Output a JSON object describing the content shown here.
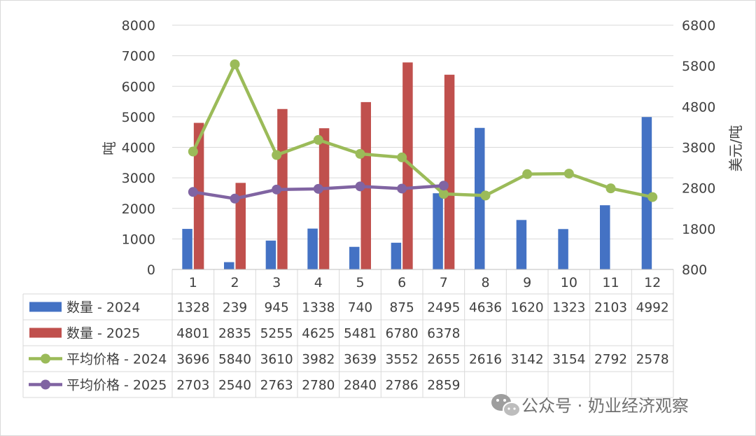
{
  "chart_data": {
    "type": "bar",
    "categories": [
      "1",
      "2",
      "3",
      "4",
      "5",
      "6",
      "7",
      "8",
      "9",
      "10",
      "11",
      "12"
    ],
    "series": [
      {
        "name": "数量 - 2024",
        "kind": "bar",
        "axis": "left",
        "color": "#4472C4",
        "values": [
          1328,
          239,
          945,
          1338,
          740,
          875,
          2495,
          4636,
          1620,
          1323,
          2103,
          4992
        ]
      },
      {
        "name": "数量 - 2025",
        "kind": "bar",
        "axis": "left",
        "color": "#C0504D",
        "values": [
          4801,
          2835,
          5255,
          4625,
          5481,
          6780,
          6378,
          null,
          null,
          null,
          null,
          null
        ]
      },
      {
        "name": "平均价格 - 2024",
        "kind": "line",
        "axis": "right",
        "color": "#9BBB59",
        "values": [
          3696,
          5840,
          3610,
          3982,
          3639,
          3552,
          2655,
          2616,
          3142,
          3154,
          2792,
          2578
        ]
      },
      {
        "name": "平均价格 - 2025",
        "kind": "line",
        "axis": "right",
        "color": "#8064A2",
        "values": [
          2703,
          2540,
          2763,
          2780,
          2840,
          2786,
          2859,
          null,
          null,
          null,
          null,
          null
        ]
      }
    ],
    "ylabel": "吨",
    "y2label": "美元/吨",
    "ylim": [
      0,
      8000
    ],
    "y2lim": [
      800,
      6800
    ],
    "yticks": [
      0,
      1000,
      2000,
      3000,
      4000,
      5000,
      6000,
      7000,
      8000
    ],
    "y2ticks": [
      800,
      1800,
      2800,
      3800,
      4800,
      5800,
      6800
    ],
    "grid": true,
    "legend": "data-table-below"
  },
  "watermark": {
    "text": "公众号 · 奶业经济观察",
    "icon": "wechat-icon"
  }
}
